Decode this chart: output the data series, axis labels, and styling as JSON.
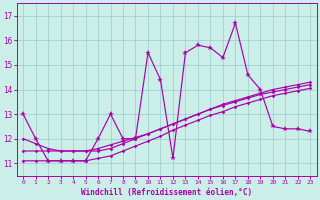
{
  "xlabel": "Windchill (Refroidissement éolien,°C)",
  "background_color": "#cceee8",
  "line_color": "#aa00aa",
  "grid_color": "#99cccc",
  "x": [
    0,
    1,
    2,
    3,
    4,
    5,
    6,
    7,
    8,
    9,
    10,
    11,
    12,
    13,
    14,
    15,
    16,
    17,
    18,
    19,
    20,
    21,
    22,
    23
  ],
  "line_main": [
    13.0,
    12.0,
    11.1,
    11.1,
    11.1,
    11.1,
    12.0,
    13.0,
    12.0,
    12.0,
    15.5,
    14.4,
    11.2,
    15.5,
    15.8,
    15.7,
    15.3,
    16.7,
    14.6,
    14.0,
    12.5,
    12.4,
    12.4,
    12.3
  ],
  "line_a": [
    11.1,
    11.1,
    11.1,
    11.1,
    11.1,
    11.1,
    11.2,
    11.3,
    11.5,
    11.7,
    11.9,
    12.1,
    12.35,
    12.55,
    12.75,
    12.95,
    13.1,
    13.3,
    13.45,
    13.6,
    13.75,
    13.85,
    13.95,
    14.05
  ],
  "line_b": [
    11.5,
    11.5,
    11.5,
    11.5,
    11.5,
    11.5,
    11.6,
    11.75,
    11.9,
    12.05,
    12.2,
    12.4,
    12.6,
    12.8,
    13.0,
    13.2,
    13.35,
    13.5,
    13.65,
    13.8,
    13.9,
    14.0,
    14.1,
    14.2
  ],
  "line_c": [
    12.0,
    11.8,
    11.6,
    11.5,
    11.5,
    11.5,
    11.5,
    11.6,
    11.8,
    12.0,
    12.2,
    12.4,
    12.6,
    12.8,
    13.0,
    13.2,
    13.4,
    13.55,
    13.7,
    13.85,
    14.0,
    14.1,
    14.2,
    14.3
  ],
  "ylim": [
    10.5,
    17.5
  ],
  "yticks": [
    11,
    12,
    13,
    14,
    15,
    16,
    17
  ],
  "xlim": [
    -0.5,
    23.5
  ],
  "xticks": [
    0,
    1,
    2,
    3,
    4,
    5,
    6,
    7,
    8,
    9,
    10,
    11,
    12,
    13,
    14,
    15,
    16,
    17,
    18,
    19,
    20,
    21,
    22,
    23
  ],
  "figsize": [
    3.2,
    2.0
  ],
  "dpi": 100
}
